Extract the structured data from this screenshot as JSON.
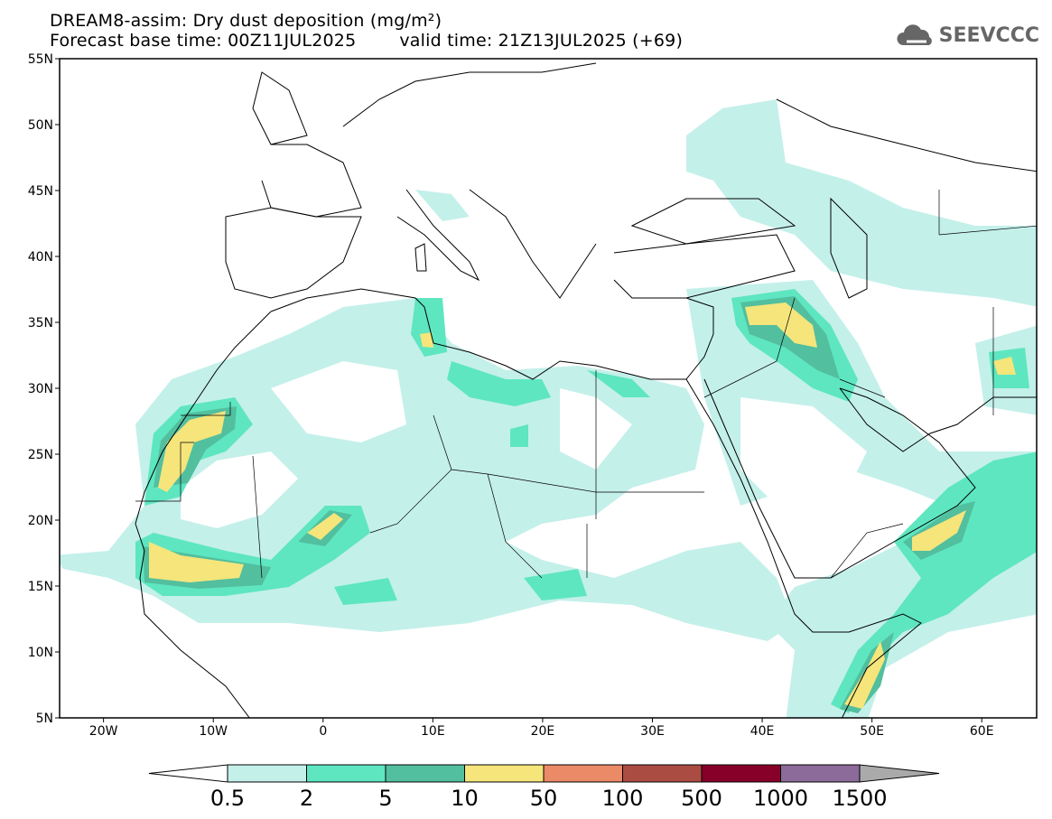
{
  "header": {
    "title": "DREAM8-assim: Dry dust deposition (mg/m²)",
    "base_time": "Forecast base time: 00Z11JUL2025",
    "valid_time": "valid time: 21Z13JUL2025 (+69)"
  },
  "logo": {
    "text": "SEEVCCC",
    "icon": "cloud-icon"
  },
  "map": {
    "lon_range": [
      -24,
      65
    ],
    "lat_range": [
      5,
      55
    ],
    "lat_ticks": [
      {
        "value": 55,
        "label": "55N"
      },
      {
        "value": 50,
        "label": "50N"
      },
      {
        "value": 45,
        "label": "45N"
      },
      {
        "value": 40,
        "label": "40N"
      },
      {
        "value": 35,
        "label": "35N"
      },
      {
        "value": 30,
        "label": "30N"
      },
      {
        "value": 25,
        "label": "25N"
      },
      {
        "value": 20,
        "label": "20N"
      },
      {
        "value": 15,
        "label": "15N"
      },
      {
        "value": 10,
        "label": "10N"
      },
      {
        "value": 5,
        "label": "5N"
      }
    ],
    "lon_ticks": [
      {
        "value": -20,
        "label": "20W"
      },
      {
        "value": -10,
        "label": "10W"
      },
      {
        "value": 0,
        "label": "0"
      },
      {
        "value": 10,
        "label": "10E"
      },
      {
        "value": 20,
        "label": "20E"
      },
      {
        "value": 30,
        "label": "30E"
      },
      {
        "value": 40,
        "label": "40E"
      },
      {
        "value": 50,
        "label": "50E"
      },
      {
        "value": 60,
        "label": "60E"
      }
    ]
  },
  "colorbar": {
    "unit": "mg/m²",
    "levels": [
      "0.5",
      "2",
      "5",
      "10",
      "50",
      "100",
      "500",
      "1000",
      "1500"
    ],
    "colors": [
      "#c4f0ea",
      "#5ee6c0",
      "#52bf9e",
      "#f5e57b",
      "#eb8a66",
      "#ab4c42",
      "#870029",
      "#8c6a9a"
    ],
    "under_color": "#ffffff",
    "over_color": "#aaaaaa"
  }
}
